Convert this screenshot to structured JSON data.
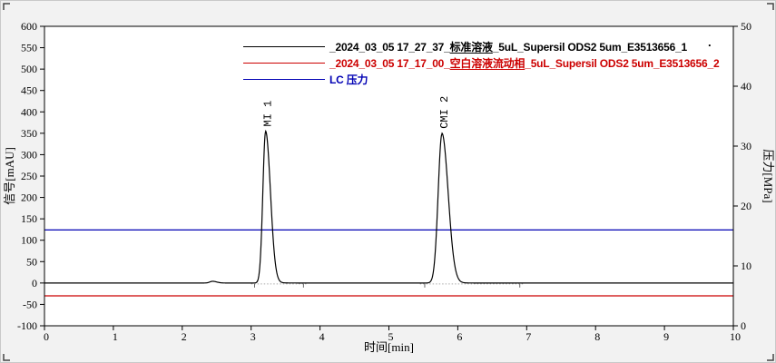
{
  "figure": {
    "background": "#f2f2f2",
    "plot_background": "#ffffff",
    "frame_color": "#000000"
  },
  "chart_data": {
    "type": "line",
    "title": "",
    "x_axis": {
      "label": "时间[min]",
      "min": 0,
      "max": 10,
      "ticks": [
        0,
        1,
        2,
        3,
        4,
        5,
        6,
        7,
        8,
        9,
        10
      ]
    },
    "y_axis_left": {
      "label": "信号[mAU]",
      "min": -100,
      "max": 600,
      "ticks": [
        600,
        550,
        500,
        450,
        400,
        350,
        300,
        250,
        200,
        150,
        100,
        50,
        0,
        -50,
        -100
      ]
    },
    "y_axis_right": {
      "label": "压力[MPa]",
      "min": 0,
      "max": 50,
      "ticks": [
        50,
        40,
        30,
        20,
        10,
        0
      ]
    },
    "series": [
      {
        "name": "_2024_03_05 17_27_37_标准溶液_5uL_Supersil ODS2 5um_E3513656_1",
        "color": "#000000",
        "kind": "chromatogram",
        "baseline_mAU": 0,
        "peaks": [
          {
            "label": "",
            "retention_min": 2.44,
            "height_mAU": 4,
            "sigma_left_min": 0.04,
            "sigma_right_min": 0.06
          },
          {
            "label": "MI 1",
            "retention_min": 3.21,
            "height_mAU": 353,
            "sigma_left_min": 0.04,
            "sigma_right_min": 0.07
          },
          {
            "label": "CMI 2",
            "retention_min": 5.77,
            "height_mAU": 348,
            "sigma_left_min": 0.055,
            "sigma_right_min": 0.09
          }
        ]
      },
      {
        "name": "_2024_03_05 17_17_00_空白溶液流动相_5uL_Supersil ODS2 5um_E3513656_2",
        "color": "#cc0000",
        "kind": "flat-left",
        "value_mAU": -30
      },
      {
        "name": "LC 压力",
        "color": "#0000b4",
        "kind": "flat-right",
        "value_MPa": 16
      }
    ],
    "integration": {
      "baseline_segments_min": [
        [
          3.0,
          3.8
        ],
        [
          5.45,
          6.95
        ]
      ],
      "event_ticks_min": [
        3.05,
        3.76,
        5.52,
        6.9
      ]
    }
  },
  "legend": {
    "entries": [
      {
        "parts": [
          "_2024_03_05 17_27_37_",
          "标准溶液",
          "_5uL_Supersil ODS2 5um_E3513656_1"
        ],
        "color": "#000000"
      },
      {
        "parts": [
          "_2024_03_05 17_17_00_",
          "空白溶液流动相",
          "_5uL_Supersil ODS2 5um_E3513656_2"
        ],
        "color": "#cc0000"
      },
      {
        "parts": [
          "LC 压力",
          "",
          ""
        ],
        "color": "#0000b4"
      }
    ],
    "trailing_mark": "."
  }
}
